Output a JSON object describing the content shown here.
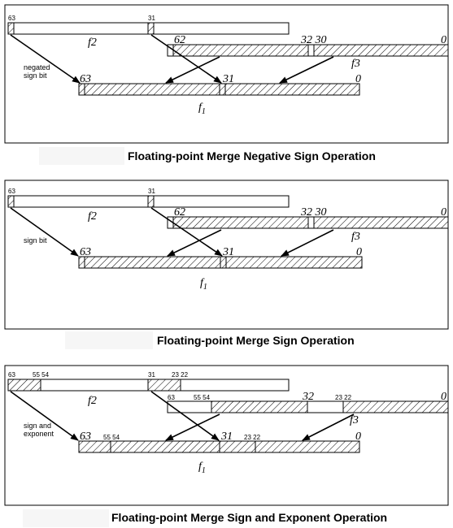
{
  "colors": {
    "frame": "#000000",
    "hatch": "#000000",
    "caption_bg": "#f6f6f6"
  },
  "diagrams": [
    {
      "caption": "Floating-point Merge Negative Sign Operation",
      "src_label": "negated\nsign bit",
      "reg_f2": "f2",
      "reg_f3": "f3",
      "reg_f1_base": "f",
      "reg_f1_sub": "1",
      "bits": {
        "f2_hi": "63",
        "f2_mid": "31",
        "f3_hi": "62",
        "f3_mid": "32 30",
        "f3_lo": "0",
        "f1_hi": "63",
        "f1_mid": "31",
        "f1_lo": "0"
      }
    },
    {
      "caption": "Floating-point Merge Sign Operation",
      "src_label": "sign bit",
      "reg_f2": "f2",
      "reg_f3": "f3",
      "reg_f1_base": "f",
      "reg_f1_sub": "1",
      "bits": {
        "f2_hi": "63",
        "f2_mid": "31",
        "f3_hi": "62",
        "f3_mid": "32 30",
        "f3_lo": "0",
        "f1_hi": "63",
        "f1_mid": "31",
        "f1_lo": "0"
      }
    },
    {
      "caption": "Floating-point Merge Sign and Exponent Operation",
      "src_label": "sign and\nexponent",
      "reg_f2": "f2",
      "reg_f3": "f3",
      "reg_f1_base": "f",
      "reg_f1_sub": "1",
      "bits": {
        "f2_hi": "63",
        "f2_5554": "55 54",
        "f2_mid": "31",
        "f2_2322": "23 22",
        "f3_hi": "63",
        "f3_5554": "55 54",
        "f3_mid": "32",
        "f3_2322": "23 22",
        "f3_lo": "0",
        "f1_hi": "63",
        "f1_5554": "55 54",
        "f1_mid": "31",
        "f1_2322": "23 22",
        "f1_lo": "0"
      }
    }
  ]
}
